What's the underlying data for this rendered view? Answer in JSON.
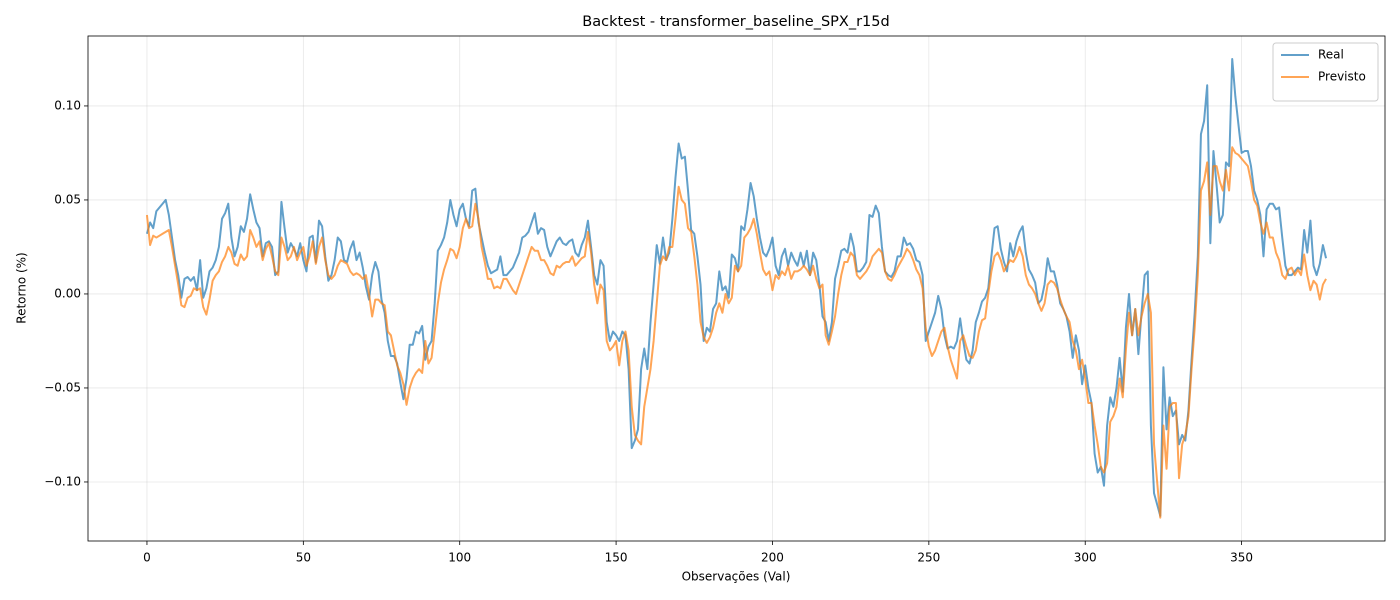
{
  "chart_data": {
    "type": "line",
    "title": "Backtest - transformer_baseline_SPX_r15d",
    "x_label": "Observações (Val)",
    "y_label": "Retorno (%)",
    "xlim": [
      -18.85,
      395.85
    ],
    "ylim": [
      -0.1314,
      0.1372
    ],
    "xticks": [
      0,
      50,
      100,
      150,
      200,
      250,
      300,
      350
    ],
    "yticks": [
      {
        "value": -0.1,
        "label": "−0.10"
      },
      {
        "value": -0.05,
        "label": "−0.05"
      },
      {
        "value": 0,
        "label": "0.00"
      },
      {
        "value": 0.05,
        "label": "0.05"
      },
      {
        "value": 0.1,
        "label": "0.10"
      }
    ],
    "grid": true,
    "legend": "upper-right",
    "x": [
      0,
      1,
      2,
      3,
      4,
      5,
      6,
      7,
      8,
      9,
      10,
      11,
      12,
      13,
      14,
      15,
      16,
      17,
      18,
      19,
      20,
      21,
      22,
      23,
      24,
      25,
      26,
      27,
      28,
      29,
      30,
      31,
      32,
      33,
      34,
      35,
      36,
      37,
      38,
      39,
      40,
      41,
      42,
      43,
      44,
      45,
      46,
      47,
      48,
      49,
      50,
      51,
      52,
      53,
      54,
      55,
      56,
      57,
      58,
      59,
      60,
      61,
      62,
      63,
      64,
      65,
      66,
      67,
      68,
      69,
      70,
      71,
      72,
      73,
      74,
      75,
      76,
      77,
      78,
      79,
      80,
      81,
      82,
      83,
      84,
      85,
      86,
      87,
      88,
      89,
      90,
      91,
      92,
      93,
      94,
      95,
      96,
      97,
      98,
      99,
      100,
      101,
      102,
      103,
      104,
      105,
      106,
      107,
      108,
      109,
      110,
      111,
      112,
      113,
      114,
      115,
      116,
      117,
      118,
      119,
      120,
      121,
      122,
      123,
      124,
      125,
      126,
      127,
      128,
      129,
      130,
      131,
      132,
      133,
      134,
      135,
      136,
      137,
      138,
      139,
      140,
      141,
      142,
      143,
      144,
      145,
      146,
      147,
      148,
      149,
      150,
      151,
      152,
      153,
      154,
      155,
      156,
      157,
      158,
      159,
      160,
      161,
      162,
      163,
      164,
      165,
      166,
      167,
      168,
      169,
      170,
      171,
      172,
      173,
      174,
      175,
      176,
      177,
      178,
      179,
      180,
      181,
      182,
      183,
      184,
      185,
      186,
      187,
      188,
      189,
      190,
      191,
      192,
      193,
      194,
      195,
      196,
      197,
      198,
      199,
      200,
      201,
      202,
      203,
      204,
      205,
      206,
      207,
      208,
      209,
      210,
      211,
      212,
      213,
      214,
      215,
      216,
      217,
      218,
      219,
      220,
      221,
      222,
      223,
      224,
      225,
      226,
      227,
      228,
      229,
      230,
      231,
      232,
      233,
      234,
      235,
      236,
      237,
      238,
      239,
      240,
      241,
      242,
      243,
      244,
      245,
      246,
      247,
      248,
      249,
      250,
      251,
      252,
      253,
      254,
      255,
      256,
      257,
      258,
      259,
      260,
      261,
      262,
      263,
      264,
      265,
      266,
      267,
      268,
      269,
      270,
      271,
      272,
      273,
      274,
      275,
      276,
      277,
      278,
      279,
      280,
      281,
      282,
      283,
      284,
      285,
      286,
      287,
      288,
      289,
      290,
      291,
      292,
      293,
      294,
      295,
      296,
      297,
      298,
      299,
      300,
      301,
      302,
      303,
      304,
      305,
      306,
      307,
      308,
      309,
      310,
      311,
      312,
      313,
      314,
      315,
      316,
      317,
      318,
      319,
      320,
      321,
      322,
      323,
      324,
      325,
      326,
      327,
      328,
      329,
      330,
      331,
      332,
      333,
      334,
      335,
      336,
      337,
      338,
      339,
      340,
      341,
      342,
      343,
      344,
      345,
      346,
      347,
      348,
      349,
      350,
      351,
      352,
      353,
      354,
      355,
      356,
      357,
      358,
      359,
      360,
      361,
      362,
      363,
      364,
      365,
      366,
      367,
      368,
      369,
      370,
      371,
      372,
      373,
      374,
      375,
      376,
      377
    ],
    "series": [
      {
        "name": "Real",
        "color": "#1f77b4",
        "values": [
          0.032,
          0.038,
          0.035,
          0.044,
          0.046,
          0.048,
          0.05,
          0.042,
          0.03,
          0.018,
          0.01,
          -0.002,
          0.008,
          0.009,
          0.007,
          0.009,
          0.002,
          0.018,
          -0.002,
          0.003,
          0.012,
          0.014,
          0.018,
          0.025,
          0.04,
          0.043,
          0.048,
          0.03,
          0.02,
          0.025,
          0.036,
          0.033,
          0.04,
          0.053,
          0.045,
          0.038,
          0.035,
          0.02,
          0.027,
          0.028,
          0.025,
          0.01,
          0.012,
          0.049,
          0.035,
          0.022,
          0.027,
          0.024,
          0.02,
          0.027,
          0.018,
          0.012,
          0.03,
          0.031,
          0.017,
          0.039,
          0.036,
          0.02,
          0.007,
          0.01,
          0.018,
          0.03,
          0.028,
          0.018,
          0.017,
          0.024,
          0.028,
          0.018,
          0.022,
          0.014,
          0.004,
          -0.003,
          0.01,
          0.017,
          0.012,
          -0.003,
          -0.01,
          -0.025,
          -0.033,
          -0.033,
          -0.037,
          -0.047,
          -0.056,
          -0.045,
          -0.027,
          -0.027,
          -0.02,
          -0.021,
          -0.017,
          -0.035,
          -0.028,
          -0.025,
          -0.005,
          0.023,
          0.026,
          0.03,
          0.038,
          0.05,
          0.042,
          0.036,
          0.045,
          0.048,
          0.04,
          0.036,
          0.055,
          0.056,
          0.038,
          0.03,
          0.022,
          0.015,
          0.011,
          0.012,
          0.013,
          0.02,
          0.01,
          0.01,
          0.012,
          0.014,
          0.018,
          0.022,
          0.03,
          0.031,
          0.033,
          0.038,
          0.043,
          0.032,
          0.035,
          0.034,
          0.025,
          0.02,
          0.024,
          0.028,
          0.03,
          0.027,
          0.026,
          0.028,
          0.029,
          0.022,
          0.02,
          0.026,
          0.03,
          0.039,
          0.025,
          0.01,
          0.005,
          0.018,
          0.015,
          -0.015,
          -0.025,
          -0.02,
          -0.022,
          -0.025,
          -0.02,
          -0.022,
          -0.04,
          -0.082,
          -0.078,
          -0.072,
          -0.04,
          -0.029,
          -0.04,
          -0.015,
          0.005,
          0.026,
          0.016,
          0.03,
          0.018,
          0.022,
          0.04,
          0.062,
          0.08,
          0.072,
          0.073,
          0.055,
          0.034,
          0.032,
          0.02,
          0.005,
          -0.025,
          -0.018,
          -0.02,
          -0.008,
          -0.005,
          0.012,
          0.002,
          0.004,
          -0.002,
          0.021,
          0.019,
          0.012,
          0.036,
          0.034,
          0.045,
          0.059,
          0.052,
          0.04,
          0.03,
          0.022,
          0.02,
          0.024,
          0.03,
          0.015,
          0.01,
          0.02,
          0.024,
          0.015,
          0.022,
          0.018,
          0.015,
          0.022,
          0.015,
          0.023,
          0.01,
          0.022,
          0.018,
          0.005,
          -0.012,
          -0.015,
          -0.025,
          -0.015,
          0.008,
          0.015,
          0.023,
          0.024,
          0.022,
          0.032,
          0.025,
          0.012,
          0.012,
          0.014,
          0.017,
          0.042,
          0.041,
          0.047,
          0.043,
          0.025,
          0.012,
          0.01,
          0.009,
          0.012,
          0.02,
          0.02,
          0.03,
          0.026,
          0.027,
          0.024,
          0.018,
          0.017,
          0.01,
          -0.025,
          -0.02,
          -0.015,
          -0.01,
          -0.001,
          -0.008,
          -0.022,
          -0.029,
          -0.028,
          -0.029,
          -0.025,
          -0.013,
          -0.025,
          -0.035,
          -0.037,
          -0.03,
          -0.015,
          -0.01,
          -0.004,
          -0.002,
          0.003,
          0.02,
          0.035,
          0.036,
          0.024,
          0.017,
          0.012,
          0.027,
          0.02,
          0.028,
          0.033,
          0.036,
          0.022,
          0.013,
          0.01,
          0.006,
          -0.005,
          -0.003,
          0.005,
          0.019,
          0.012,
          0.012,
          0.005,
          -0.005,
          -0.008,
          -0.012,
          -0.02,
          -0.034,
          -0.022,
          -0.03,
          -0.048,
          -0.038,
          -0.05,
          -0.058,
          -0.085,
          -0.095,
          -0.092,
          -0.102,
          -0.07,
          -0.055,
          -0.06,
          -0.05,
          -0.034,
          -0.052,
          -0.018,
          0,
          -0.022,
          -0.008,
          -0.032,
          -0.01,
          0.01,
          0.012,
          -0.07,
          -0.106,
          -0.112,
          -0.118,
          -0.039,
          -0.072,
          -0.055,
          -0.065,
          -0.062,
          -0.08,
          -0.075,
          -0.078,
          -0.062,
          -0.035,
          -0.01,
          0.02,
          0.085,
          0.092,
          0.111,
          0.027,
          0.076,
          0.058,
          0.038,
          0.042,
          0.07,
          0.068,
          0.125,
          0.105,
          0.09,
          0.075,
          0.076,
          0.076,
          0.068,
          0.055,
          0.05,
          0.042,
          0.02,
          0.045,
          0.048,
          0.048,
          0.045,
          0.046,
          0.03,
          0.015,
          0.01,
          0.01,
          0.012,
          0.014,
          0.013,
          0.034,
          0.022,
          0.039,
          0.015,
          0.01,
          0.016,
          0.026,
          0.019
        ]
      },
      {
        "name": "Previsto",
        "color": "#ff7f0e",
        "values": [
          0.042,
          0.026,
          0.031,
          0.03,
          0.031,
          0.032,
          0.033,
          0.034,
          0.025,
          0.015,
          0.005,
          -0.006,
          -0.007,
          -0.002,
          -0.001,
          0.003,
          0.002,
          0.003,
          -0.007,
          -0.011,
          -0.003,
          0.007,
          0.01,
          0.012,
          0.017,
          0.02,
          0.025,
          0.022,
          0.016,
          0.015,
          0.021,
          0.018,
          0.02,
          0.034,
          0.03,
          0.025,
          0.028,
          0.018,
          0.024,
          0.027,
          0.02,
          0.012,
          0.01,
          0.03,
          0.025,
          0.018,
          0.02,
          0.025,
          0.018,
          0.022,
          0.025,
          0.015,
          0.02,
          0.028,
          0.016,
          0.025,
          0.03,
          0.018,
          0.01,
          0.008,
          0.01,
          0.015,
          0.018,
          0.017,
          0.016,
          0.012,
          0.01,
          0.011,
          0.01,
          0.008,
          0.01,
          0,
          -0.012,
          -0.003,
          -0.003,
          -0.005,
          -0.006,
          -0.02,
          -0.022,
          -0.03,
          -0.038,
          -0.042,
          -0.048,
          -0.059,
          -0.05,
          -0.045,
          -0.042,
          -0.04,
          -0.042,
          -0.025,
          -0.037,
          -0.034,
          -0.02,
          -0.005,
          0.006,
          0.013,
          0.018,
          0.024,
          0.023,
          0.019,
          0.025,
          0.035,
          0.04,
          0.035,
          0.036,
          0.048,
          0.04,
          0.025,
          0.017,
          0.008,
          0.008,
          0.003,
          0.004,
          0.003,
          0.008,
          0.008,
          0.005,
          0.002,
          0,
          0.005,
          0.01,
          0.015,
          0.02,
          0.025,
          0.023,
          0.023,
          0.018,
          0.018,
          0.015,
          0.011,
          0.01,
          0.015,
          0.014,
          0.016,
          0.017,
          0.017,
          0.02,
          0.015,
          0.017,
          0.019,
          0.02,
          0.033,
          0.022,
          0.005,
          -0.005,
          0.005,
          0.002,
          -0.025,
          -0.03,
          -0.028,
          -0.025,
          -0.038,
          -0.025,
          -0.02,
          -0.03,
          -0.06,
          -0.075,
          -0.078,
          -0.08,
          -0.06,
          -0.05,
          -0.04,
          -0.025,
          -0.005,
          0.015,
          0.02,
          0.018,
          0.025,
          0.025,
          0.04,
          0.057,
          0.05,
          0.048,
          0.035,
          0.033,
          0.02,
          0.005,
          -0.015,
          -0.023,
          -0.026,
          -0.023,
          -0.018,
          -0.01,
          -0.005,
          -0.01,
          0,
          -0.005,
          -0.002,
          0.015,
          0.012,
          0.015,
          0.03,
          0.032,
          0.035,
          0.04,
          0.032,
          0.022,
          0.013,
          0.01,
          0.012,
          0.002,
          0.01,
          0.008,
          0.012,
          0.01,
          0.015,
          0.008,
          0.012,
          0.012,
          0.013,
          0.015,
          0.013,
          0.01,
          0.015,
          0.008,
          0.003,
          0.005,
          -0.022,
          -0.027,
          -0.02,
          -0.012,
          0,
          0.01,
          0.017,
          0.017,
          0.022,
          0.02,
          0.01,
          0.008,
          0.01,
          0.012,
          0.015,
          0.02,
          0.022,
          0.024,
          0.022,
          0.012,
          0.008,
          0.007,
          0.01,
          0.014,
          0.017,
          0.02,
          0.024,
          0.022,
          0.018,
          0.013,
          0.01,
          0.003,
          -0.018,
          -0.028,
          -0.033,
          -0.03,
          -0.025,
          -0.02,
          -0.018,
          -0.028,
          -0.035,
          -0.04,
          -0.045,
          -0.025,
          -0.022,
          -0.028,
          -0.033,
          -0.034,
          -0.03,
          -0.02,
          -0.014,
          -0.013,
          0,
          0.012,
          0.02,
          0.022,
          0.018,
          0.012,
          0.015,
          0.018,
          0.017,
          0.02,
          0.025,
          0.02,
          0.01,
          0.005,
          0.003,
          0,
          -0.005,
          -0.009,
          -0.005,
          0.005,
          0.007,
          0.006,
          0.003,
          -0.003,
          -0.008,
          -0.012,
          -0.015,
          -0.025,
          -0.03,
          -0.04,
          -0.035,
          -0.045,
          -0.058,
          -0.058,
          -0.07,
          -0.08,
          -0.092,
          -0.095,
          -0.09,
          -0.068,
          -0.065,
          -0.06,
          -0.045,
          -0.055,
          -0.03,
          -0.01,
          -0.022,
          -0.008,
          -0.022,
          -0.012,
          -0.005,
          0,
          -0.01,
          -0.08,
          -0.1,
          -0.119,
          -0.07,
          -0.093,
          -0.06,
          -0.058,
          -0.058,
          -0.098,
          -0.08,
          -0.075,
          -0.065,
          -0.04,
          -0.018,
          0.01,
          0.055,
          0.06,
          0.07,
          0.042,
          0.068,
          0.068,
          0.06,
          0.055,
          0.066,
          0.055,
          0.078,
          0.075,
          0.074,
          0.072,
          0.07,
          0.068,
          0.06,
          0.05,
          0.047,
          0.038,
          0.032,
          0.038,
          0.03,
          0.03,
          0.022,
          0.018,
          0.01,
          0.008,
          0.013,
          0.014,
          0.01,
          0.013,
          0.01,
          0.021,
          0.01,
          0.002,
          0.007,
          0.005,
          -0.003,
          0.005,
          0.008
        ]
      }
    ]
  }
}
